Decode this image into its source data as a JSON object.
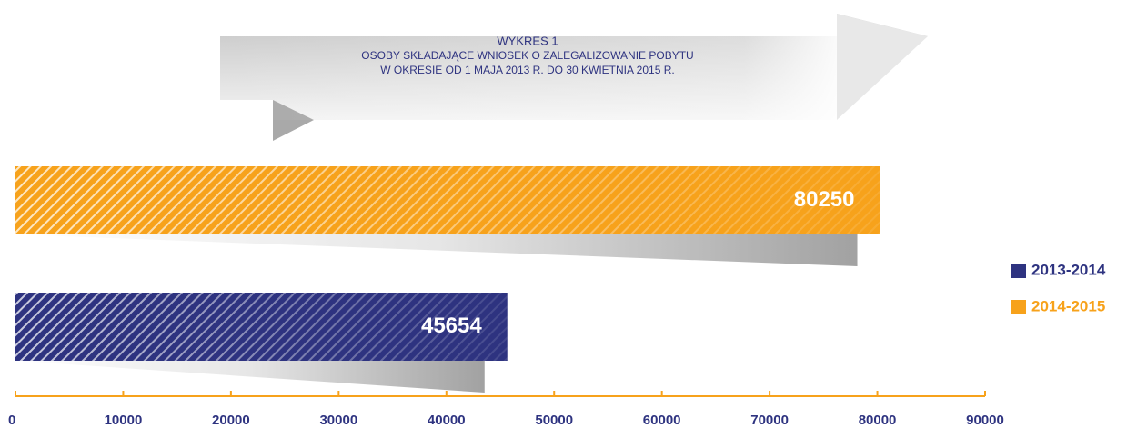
{
  "chart_data": {
    "type": "hbar",
    "title": "WYKRES 1",
    "subtitle": [
      "OSOBY SKŁADAJĄCE WNIOSEK O ZALEGALIZOWANIE POBYTU",
      "W OKRESIE OD 1 MAJA 2013 R. DO 30 KWIETNIA 2015 R."
    ],
    "series": [
      {
        "name": "2013-2014",
        "color": "#2e3380",
        "values": [
          45654
        ]
      },
      {
        "name": "2014-2015",
        "color": "#f7a21b",
        "values": [
          80250
        ]
      }
    ],
    "xlim": [
      0,
      90000
    ],
    "xticks": [
      0,
      10000,
      20000,
      30000,
      40000,
      50000,
      60000,
      70000,
      80000,
      90000
    ],
    "axis_color": "#f7a21b",
    "legend": "right"
  }
}
